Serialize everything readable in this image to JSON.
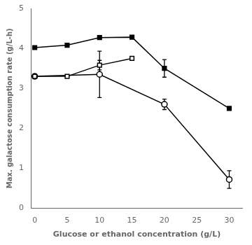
{
  "chart_data": {
    "type": "line",
    "xlabel": "Glucose or ethanol concentration (g/L)",
    "ylabel": "Max. galactose consumption rate (g/L-h)",
    "xlim": [
      -0.5,
      32
    ],
    "ylim": [
      0,
      5
    ],
    "xticks": [
      0,
      5,
      10,
      15,
      20,
      25,
      30
    ],
    "yticks": [
      0,
      1,
      2,
      3,
      4,
      5
    ],
    "grid": false,
    "series": [
      {
        "x": [
          0,
          5,
          10,
          15,
          20,
          30
        ],
        "values": [
          4.02,
          4.08,
          4.27,
          4.28,
          3.5,
          2.5
        ],
        "yerr": [
          0.0,
          0.0,
          0.0,
          0.0,
          0.22,
          0.0
        ],
        "color": "#000000",
        "marker": "filled_square",
        "line_style": "solid"
      },
      {
        "x": [
          0,
          5,
          10,
          15
        ],
        "values": [
          3.3,
          3.3,
          3.58,
          3.75
        ],
        "yerr": [
          0.0,
          0.0,
          0.12,
          0.0
        ],
        "color": "#000000",
        "marker": "open_square",
        "line_style": "solid"
      },
      {
        "x": [
          0,
          10,
          20,
          30
        ],
        "values": [
          3.3,
          3.35,
          2.6,
          0.72
        ],
        "yerr": [
          0.0,
          0.58,
          0.13,
          0.22
        ],
        "color": "#000000",
        "marker": "open_circle",
        "line_style": "solid"
      }
    ]
  }
}
